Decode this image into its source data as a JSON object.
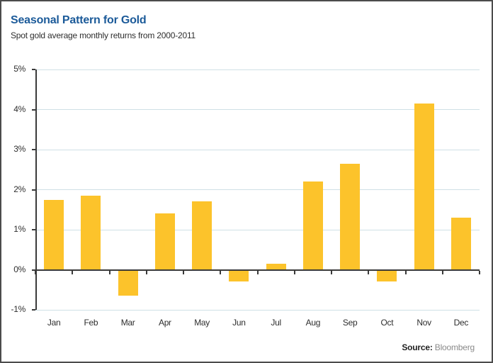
{
  "header": {
    "title": "Seasonal Pattern for Gold",
    "subtitle": "Spot gold average monthly returns from 2000-2011"
  },
  "footer": {
    "source_label": "Source:",
    "source_value": "Bloomberg"
  },
  "colors": {
    "bar": "#fcc32b",
    "title_blue": "#1b5a99",
    "gridline": "#cfe0e6",
    "axis": "#3a3a3a"
  },
  "chart_data": {
    "type": "bar",
    "title": "Seasonal Pattern for Gold",
    "subtitle": "Spot gold average monthly returns from 2000-2011",
    "categories": [
      "Jan",
      "Feb",
      "Mar",
      "Apr",
      "May",
      "Jun",
      "Jul",
      "Aug",
      "Sep",
      "Oct",
      "Nov",
      "Dec"
    ],
    "values": [
      1.75,
      1.85,
      -0.65,
      1.4,
      1.7,
      -0.3,
      0.15,
      2.2,
      2.65,
      -0.3,
      4.15,
      1.3
    ],
    "unit": "%",
    "xlabel": "",
    "ylabel": "",
    "ylim": [
      -1,
      5
    ],
    "yticks": [
      "5%",
      "4%",
      "3%",
      "2%",
      "1%",
      "0%",
      "-1%"
    ],
    "ytick_values": [
      5,
      4,
      3,
      2,
      1,
      0,
      -1
    ],
    "grid": "horizontal",
    "legend": "none",
    "source": "Bloomberg"
  }
}
